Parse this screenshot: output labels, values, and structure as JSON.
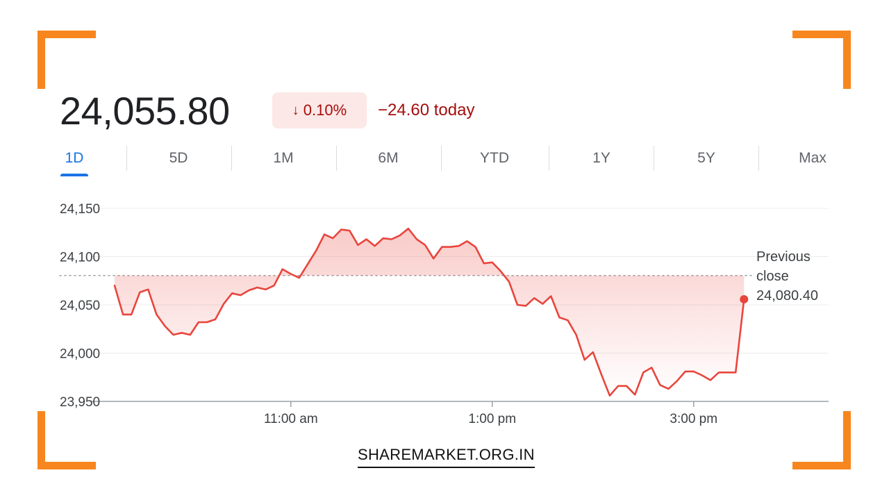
{
  "quote": {
    "price": "24,055.80",
    "change_percent": "0.10%",
    "change_arrow": "↓",
    "change_today": "−24.60 today"
  },
  "tabs": [
    {
      "label": "1D",
      "active": true
    },
    {
      "label": "5D",
      "active": false
    },
    {
      "label": "1M",
      "active": false
    },
    {
      "label": "6M",
      "active": false
    },
    {
      "label": "YTD",
      "active": false
    },
    {
      "label": "1Y",
      "active": false
    },
    {
      "label": "5Y",
      "active": false
    },
    {
      "label": "Max",
      "active": false
    }
  ],
  "colors": {
    "line": "#e8453c",
    "down_text": "#a50e0e",
    "down_badge_bg": "#fce8e6",
    "accent_active": "#1a73e8",
    "corner_brackets": "#f7861e"
  },
  "chart_data": {
    "type": "line",
    "ylim": [
      23950,
      24150
    ],
    "y_ticks": [
      "24,150",
      "24,100",
      "24,050",
      "24,000",
      "23,950"
    ],
    "y_tick_values": [
      24150,
      24100,
      24050,
      24000,
      23950
    ],
    "x_ticks": [
      "11:00 am",
      "1:00 pm",
      "3:00 pm"
    ],
    "x_tick_times": [
      "11:00",
      "13:00",
      "15:00"
    ],
    "xlim": [
      "09:15",
      "16:20"
    ],
    "previous_close": 24080.4,
    "previous_close_label": [
      "Previous",
      "close",
      "24,080.40"
    ],
    "series": [
      {
        "points": [
          [
            "09:15",
            24070
          ],
          [
            "09:20",
            24040
          ],
          [
            "09:25",
            24040
          ],
          [
            "09:30",
            24063
          ],
          [
            "09:35",
            24066
          ],
          [
            "09:40",
            24040
          ],
          [
            "09:45",
            24028
          ],
          [
            "09:50",
            24019
          ],
          [
            "09:55",
            24021
          ],
          [
            "10:00",
            24019
          ],
          [
            "10:05",
            24032
          ],
          [
            "10:10",
            24032
          ],
          [
            "10:15",
            24035
          ],
          [
            "10:20",
            24051
          ],
          [
            "10:25",
            24062
          ],
          [
            "10:30",
            24060
          ],
          [
            "10:35",
            24065
          ],
          [
            "10:40",
            24068
          ],
          [
            "10:45",
            24066
          ],
          [
            "10:50",
            24070
          ],
          [
            "10:55",
            24087
          ],
          [
            "11:00",
            24082
          ],
          [
            "11:05",
            24078
          ],
          [
            "11:10",
            24092
          ],
          [
            "11:15",
            24106
          ],
          [
            "11:20",
            24123
          ],
          [
            "11:25",
            24119
          ],
          [
            "11:30",
            24128
          ],
          [
            "11:35",
            24127
          ],
          [
            "11:40",
            24112
          ],
          [
            "11:45",
            24118
          ],
          [
            "11:50",
            24111
          ],
          [
            "11:55",
            24119
          ],
          [
            "12:00",
            24118
          ],
          [
            "12:05",
            24122
          ],
          [
            "12:10",
            24129
          ],
          [
            "12:15",
            24118
          ],
          [
            "12:20",
            24112
          ],
          [
            "12:25",
            24098
          ],
          [
            "12:30",
            24110
          ],
          [
            "12:35",
            24110
          ],
          [
            "12:40",
            24111
          ],
          [
            "12:45",
            24116
          ],
          [
            "12:50",
            24110
          ],
          [
            "12:55",
            24093
          ],
          [
            "13:00",
            24094
          ],
          [
            "13:05",
            24085
          ],
          [
            "13:10",
            24074
          ],
          [
            "13:15",
            24050
          ],
          [
            "13:20",
            24049
          ],
          [
            "13:25",
            24057
          ],
          [
            "13:30",
            24051
          ],
          [
            "13:35",
            24059
          ],
          [
            "13:40",
            24037
          ],
          [
            "13:45",
            24034
          ],
          [
            "13:50",
            24019
          ],
          [
            "13:55",
            23993
          ],
          [
            "14:00",
            24001
          ],
          [
            "14:05",
            23978
          ],
          [
            "14:10",
            23956
          ],
          [
            "14:15",
            23966
          ],
          [
            "14:20",
            23966
          ],
          [
            "14:25",
            23957
          ],
          [
            "14:30",
            23980
          ],
          [
            "14:35",
            23985
          ],
          [
            "14:40",
            23967
          ],
          [
            "14:45",
            23963
          ],
          [
            "14:50",
            23971
          ],
          [
            "14:55",
            23981
          ],
          [
            "15:00",
            23981
          ],
          [
            "15:05",
            23977
          ],
          [
            "15:10",
            23972
          ],
          [
            "15:15",
            23980
          ],
          [
            "15:20",
            23980
          ],
          [
            "15:25",
            23980
          ],
          [
            "15:30",
            24055.8
          ]
        ]
      }
    ]
  },
  "footer": {
    "link_text": "SHAREMARKET.ORG.IN"
  }
}
